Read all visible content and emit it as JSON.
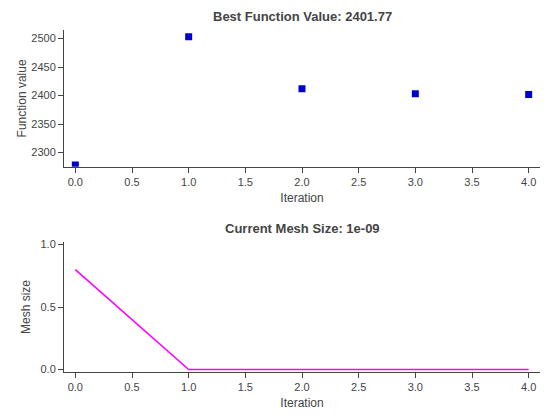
{
  "chart_data": [
    {
      "type": "scatter",
      "title": "Best Function Value: 2401.77",
      "xlabel": "Iteration",
      "ylabel": "Function value",
      "x": [
        0,
        1,
        2,
        3,
        4
      ],
      "values": [
        2278,
        2503,
        2412,
        2403,
        2402
      ],
      "color": "#0000cc",
      "marker": "square",
      "xlim": [
        -0.1,
        4.1
      ],
      "ylim": [
        2275,
        2515
      ],
      "xticks": [
        {
          "value": 0,
          "label": "0.0"
        },
        0.5,
        {
          "value": 1,
          "label": "1.0"
        },
        1.5,
        {
          "value": 2,
          "label": "2.0"
        },
        2.5,
        {
          "value": 3,
          "label": "3.0"
        },
        3.5,
        {
          "value": 4,
          "label": "4.0"
        }
      ],
      "yticks": [
        2300,
        2350,
        2400,
        2450,
        2500
      ],
      "grid": false
    },
    {
      "type": "line",
      "title": "Current Mesh Size: 1e-09",
      "xlabel": "Iteration",
      "ylabel": "Mesh size",
      "x": [
        0,
        1,
        2,
        3,
        4
      ],
      "values": [
        0.8,
        0.0,
        0.0,
        0.0,
        0.0
      ],
      "color": "#ff00ff",
      "xlim": [
        -0.1,
        4.1
      ],
      "ylim": [
        -0.02,
        1.02
      ],
      "xticks": [
        {
          "value": 0,
          "label": "0.0"
        },
        0.5,
        {
          "value": 1,
          "label": "1.0"
        },
        1.5,
        {
          "value": 2,
          "label": "2.0"
        },
        2.5,
        {
          "value": 3,
          "label": "3.0"
        },
        3.5,
        {
          "value": 4,
          "label": "4.0"
        }
      ],
      "yticks": [
        {
          "value": 0,
          "label": "0.0"
        },
        0.5,
        {
          "value": 1,
          "label": "1.0"
        }
      ],
      "grid": false
    }
  ]
}
